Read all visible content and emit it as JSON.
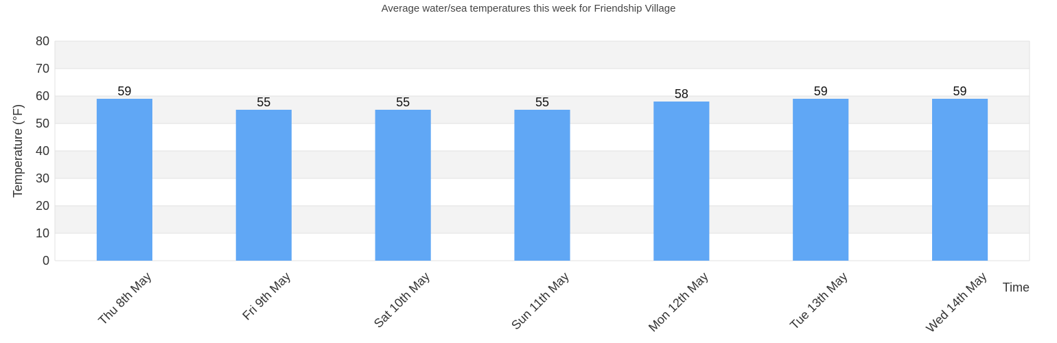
{
  "chart_data": {
    "type": "bar",
    "title": "Average water/sea temperatures this week for Friendship Village",
    "xlabel": "Time",
    "ylabel": "Temperature (°F)",
    "categories": [
      "Thu 8th May",
      "Fri 9th May",
      "Sat 10th May",
      "Sun 11th May",
      "Mon 12th May",
      "Tue 13th May",
      "Wed 14th May"
    ],
    "values": [
      59,
      55,
      55,
      55,
      58,
      59,
      59
    ],
    "ylim": [
      0,
      80
    ],
    "yticks": [
      0,
      10,
      20,
      30,
      40,
      50,
      60,
      70,
      80
    ],
    "bar_color": "#60a7f5",
    "band_color": "#f3f3f3",
    "grid": true,
    "legend": "none"
  }
}
